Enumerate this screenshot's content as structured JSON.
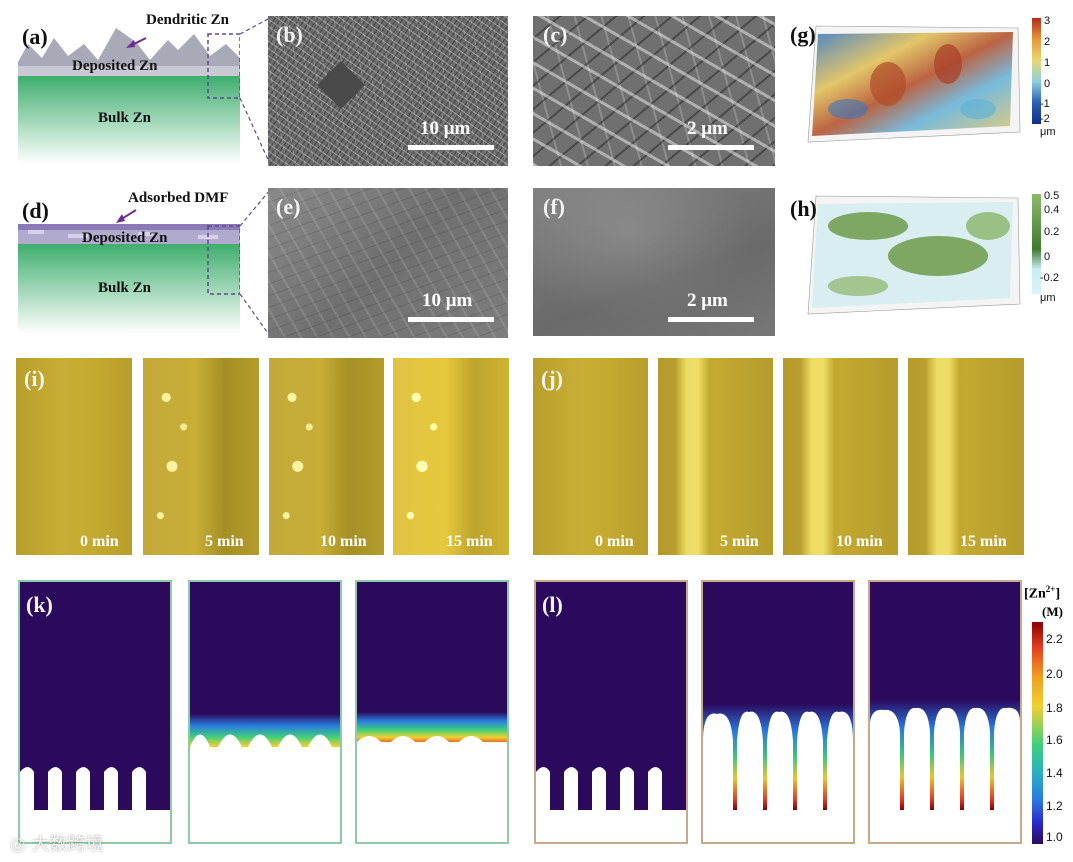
{
  "panels": {
    "a": {
      "letter": "(a)",
      "label_dendritic": "Dendritic Zn",
      "label_deposited": "Deposited Zn",
      "label_bulk": "Bulk Zn"
    },
    "b": {
      "letter": "(b)",
      "scale": "10 μm"
    },
    "c": {
      "letter": "(c)",
      "scale": "2 μm"
    },
    "d": {
      "letter": "(d)",
      "label_adsorbed": "Adsorbed DMF",
      "label_deposited": "Deposited Zn",
      "label_bulk": "Bulk Zn"
    },
    "e": {
      "letter": "(e)",
      "scale": "10 μm"
    },
    "f": {
      "letter": "(f)",
      "scale": "2 μm"
    },
    "g": {
      "letter": "(g)",
      "colorbar_ticks": [
        "3",
        "2",
        "1",
        "0",
        "-1",
        "-2"
      ],
      "colorbar_unit": "μm"
    },
    "h": {
      "letter": "(h)",
      "colorbar_ticks": [
        "0.5",
        "0.4",
        "0.2",
        "0",
        "-0.2"
      ],
      "colorbar_unit": "μm"
    },
    "i": {
      "letter": "(i)",
      "times": [
        "0 min",
        "5 min",
        "10 min",
        "15 min"
      ]
    },
    "j": {
      "letter": "(j)",
      "times": [
        "0 min",
        "5 min",
        "10 min",
        "15 min"
      ]
    },
    "k": {
      "letter": "(k)"
    },
    "l": {
      "letter": "(l)"
    },
    "colorbar": {
      "title": "[Zn",
      "title_sup": "2+",
      "title_end": "]",
      "unit": "(M)",
      "ticks": [
        "2.2",
        "2.0",
        "1.8",
        "1.6",
        "1.4",
        "1.2",
        "1.0"
      ]
    }
  },
  "watermark": "大数跨境",
  "colors": {
    "sim_background": "#2b0a5e",
    "border_k": "#8fcaa8",
    "border_l": "#c7aa8a",
    "bulk_zn": "#3fae6e"
  }
}
